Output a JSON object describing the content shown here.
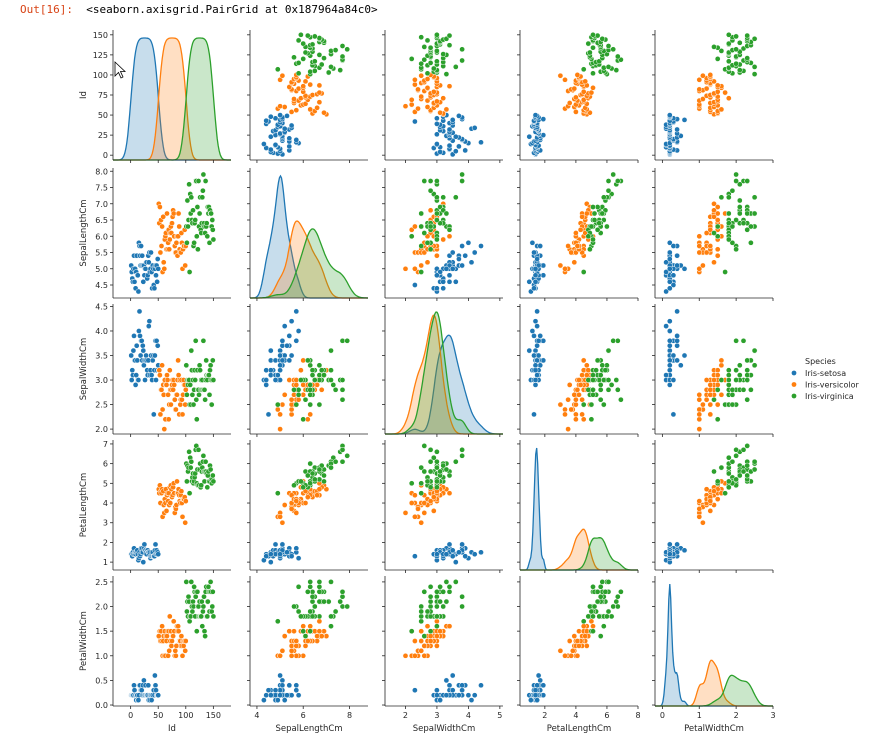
{
  "output": {
    "prompt": "Out[16]:",
    "text": "<seaborn.axisgrid.PairGrid at 0x187964a84c0>"
  },
  "chart_data": {
    "type": "scatter",
    "title": "",
    "variables": [
      "Id",
      "SepalLengthCm",
      "SepalWidthCm",
      "PetalLengthCm",
      "PetalWidthCm"
    ],
    "diagonal": "kde",
    "hue": "Species",
    "legend": {
      "title": "Species",
      "placement": "right",
      "entries": [
        {
          "name": "Iris-setosa",
          "color": "#1f77b4"
        },
        {
          "name": "Iris-versicolor",
          "color": "#ff7f0e"
        },
        {
          "name": "Iris-virginica",
          "color": "#2ca02c"
        }
      ]
    },
    "axes": {
      "Id": {
        "range": [
          -32,
          182
        ],
        "ticks": [
          0,
          50,
          100,
          150
        ],
        "yticks": [
          0,
          25,
          50,
          75,
          100,
          125,
          150
        ]
      },
      "SepalLengthCm": {
        "range": [
          3.7,
          8.8
        ],
        "ticks": [
          4,
          6,
          8
        ],
        "yticks": [
          4.5,
          5.0,
          5.5,
          6.0,
          6.5,
          7.0,
          7.5,
          8.0
        ],
        "yrange": [
          4.1,
          8.1
        ]
      },
      "SepalWidthCm": {
        "range": [
          1.35,
          5.1
        ],
        "ticks": [
          2,
          3,
          4,
          5
        ],
        "yticks": [
          2.0,
          2.5,
          3.0,
          3.5,
          4.0,
          4.5
        ],
        "yrange": [
          1.9,
          4.55
        ]
      },
      "PetalLengthCm": {
        "range": [
          0.4,
          8.0
        ],
        "ticks": [
          2,
          4,
          6,
          8
        ],
        "yticks": [
          1,
          2,
          3,
          4,
          5,
          6,
          7
        ],
        "yrange": [
          0.6,
          7.2
        ]
      },
      "PetalWidthCm": {
        "range": [
          -0.2,
          3.0
        ],
        "ticks": [
          0,
          1,
          2,
          3
        ],
        "yticks": [
          0.0,
          0.5,
          1.0,
          1.5,
          2.0,
          2.5
        ],
        "yrange": [
          -0.02,
          2.62
        ]
      }
    },
    "series": [
      {
        "name": "Iris-setosa",
        "SepalLengthCm": [
          5.1,
          4.9,
          4.7,
          4.6,
          5.0,
          5.4,
          4.6,
          5.0,
          4.4,
          4.9,
          5.4,
          4.8,
          4.8,
          4.3,
          5.8,
          5.7,
          5.4,
          5.1,
          5.7,
          5.1,
          5.4,
          5.1,
          4.6,
          5.1,
          4.8,
          5.0,
          5.0,
          5.2,
          5.2,
          4.7,
          4.8,
          5.4,
          5.2,
          5.5,
          4.9,
          5.0,
          5.5,
          4.9,
          4.4,
          5.1,
          5.0,
          4.5,
          4.4,
          5.0,
          5.1,
          4.8,
          5.1,
          4.6,
          5.3,
          5.0
        ],
        "SepalWidthCm": [
          3.5,
          3.0,
          3.2,
          3.1,
          3.6,
          3.9,
          3.4,
          3.4,
          2.9,
          3.1,
          3.7,
          3.4,
          3.0,
          3.0,
          4.0,
          4.4,
          3.9,
          3.5,
          3.8,
          3.8,
          3.4,
          3.7,
          3.6,
          3.3,
          3.4,
          3.0,
          3.4,
          3.5,
          3.4,
          3.2,
          3.1,
          3.4,
          4.1,
          4.2,
          3.1,
          3.2,
          3.5,
          3.1,
          3.0,
          3.4,
          3.5,
          2.3,
          3.2,
          3.5,
          3.8,
          3.0,
          3.8,
          3.2,
          3.7,
          3.3
        ],
        "PetalLengthCm": [
          1.4,
          1.4,
          1.3,
          1.5,
          1.4,
          1.7,
          1.4,
          1.5,
          1.4,
          1.5,
          1.5,
          1.6,
          1.4,
          1.1,
          1.2,
          1.5,
          1.3,
          1.4,
          1.7,
          1.5,
          1.7,
          1.5,
          1.0,
          1.7,
          1.9,
          1.6,
          1.6,
          1.5,
          1.4,
          1.6,
          1.6,
          1.5,
          1.5,
          1.4,
          1.5,
          1.2,
          1.3,
          1.5,
          1.3,
          1.5,
          1.3,
          1.3,
          1.3,
          1.6,
          1.9,
          1.4,
          1.6,
          1.4,
          1.5,
          1.4
        ],
        "PetalWidthCm": [
          0.2,
          0.2,
          0.2,
          0.2,
          0.2,
          0.4,
          0.3,
          0.2,
          0.2,
          0.1,
          0.2,
          0.2,
          0.1,
          0.1,
          0.2,
          0.4,
          0.4,
          0.3,
          0.3,
          0.3,
          0.2,
          0.4,
          0.2,
          0.5,
          0.2,
          0.2,
          0.4,
          0.2,
          0.2,
          0.2,
          0.2,
          0.4,
          0.1,
          0.2,
          0.1,
          0.2,
          0.2,
          0.1,
          0.2,
          0.2,
          0.3,
          0.3,
          0.2,
          0.6,
          0.4,
          0.3,
          0.2,
          0.2,
          0.2,
          0.2
        ]
      },
      {
        "name": "Iris-versicolor",
        "SepalLengthCm": [
          7.0,
          6.4,
          6.9,
          5.5,
          6.5,
          5.7,
          6.3,
          4.9,
          6.6,
          5.2,
          5.0,
          5.9,
          6.0,
          6.1,
          5.6,
          6.7,
          5.6,
          5.8,
          6.2,
          5.6,
          5.9,
          6.1,
          6.3,
          6.1,
          6.4,
          6.6,
          6.8,
          6.7,
          6.0,
          5.7,
          5.5,
          5.5,
          5.8,
          6.0,
          5.4,
          6.0,
          6.7,
          6.3,
          5.6,
          5.5,
          5.5,
          6.1,
          5.8,
          5.0,
          5.6,
          5.7,
          5.7,
          6.2,
          5.1,
          5.7
        ],
        "SepalWidthCm": [
          3.2,
          3.2,
          3.1,
          2.3,
          2.8,
          2.8,
          3.3,
          2.4,
          2.9,
          2.7,
          2.0,
          3.0,
          2.2,
          2.9,
          2.9,
          3.1,
          3.0,
          2.7,
          2.2,
          2.5,
          3.2,
          2.8,
          2.5,
          2.8,
          2.9,
          3.0,
          2.8,
          3.0,
          2.9,
          2.6,
          2.4,
          2.4,
          2.7,
          2.7,
          3.0,
          3.4,
          3.1,
          2.3,
          3.0,
          2.5,
          2.6,
          3.0,
          2.6,
          2.3,
          2.7,
          3.0,
          2.9,
          2.9,
          2.5,
          2.8
        ],
        "PetalLengthCm": [
          4.7,
          4.5,
          4.9,
          4.0,
          4.6,
          4.5,
          4.7,
          3.3,
          4.6,
          3.9,
          3.5,
          4.2,
          4.0,
          4.7,
          3.6,
          4.4,
          4.5,
          4.1,
          4.5,
          3.9,
          4.8,
          4.0,
          4.9,
          4.7,
          4.3,
          4.4,
          4.8,
          5.0,
          4.5,
          3.5,
          3.8,
          3.7,
          3.9,
          5.1,
          4.5,
          4.5,
          4.7,
          4.4,
          4.1,
          4.0,
          4.4,
          4.6,
          4.0,
          3.3,
          4.2,
          4.2,
          4.2,
          4.3,
          3.0,
          4.1
        ],
        "PetalWidthCm": [
          1.4,
          1.5,
          1.5,
          1.3,
          1.5,
          1.3,
          1.6,
          1.0,
          1.3,
          1.4,
          1.0,
          1.5,
          1.0,
          1.4,
          1.3,
          1.4,
          1.5,
          1.0,
          1.5,
          1.1,
          1.8,
          1.3,
          1.5,
          1.2,
          1.3,
          1.4,
          1.4,
          1.7,
          1.5,
          1.0,
          1.1,
          1.0,
          1.2,
          1.6,
          1.5,
          1.6,
          1.5,
          1.3,
          1.3,
          1.3,
          1.2,
          1.4,
          1.2,
          1.0,
          1.3,
          1.2,
          1.3,
          1.3,
          1.1,
          1.3
        ]
      },
      {
        "name": "Iris-virginica",
        "SepalLengthCm": [
          6.3,
          5.8,
          7.1,
          6.3,
          6.5,
          7.6,
          4.9,
          7.3,
          6.7,
          7.2,
          6.5,
          6.4,
          6.8,
          5.7,
          5.8,
          6.4,
          6.5,
          7.7,
          7.7,
          6.0,
          6.9,
          5.6,
          7.7,
          6.3,
          6.7,
          7.2,
          6.2,
          6.1,
          6.4,
          7.2,
          7.4,
          7.9,
          6.4,
          6.3,
          6.1,
          7.7,
          6.3,
          6.4,
          6.0,
          6.9,
          6.7,
          6.9,
          5.8,
          6.8,
          6.7,
          6.7,
          6.3,
          6.5,
          6.2,
          5.9
        ],
        "SepalWidthCm": [
          3.3,
          2.7,
          3.0,
          2.9,
          3.0,
          3.0,
          2.5,
          2.9,
          2.5,
          3.6,
          3.2,
          2.7,
          3.0,
          2.5,
          2.8,
          3.2,
          3.0,
          3.8,
          2.6,
          2.2,
          3.2,
          2.8,
          2.8,
          2.7,
          3.3,
          3.2,
          2.8,
          3.0,
          2.8,
          3.0,
          2.8,
          3.8,
          2.8,
          2.8,
          2.6,
          3.0,
          3.4,
          3.1,
          3.0,
          3.1,
          3.1,
          3.1,
          2.7,
          3.2,
          3.3,
          3.0,
          2.5,
          3.0,
          3.4,
          3.0
        ],
        "PetalLengthCm": [
          6.0,
          5.1,
          5.9,
          5.6,
          5.8,
          6.6,
          4.5,
          6.3,
          5.8,
          6.1,
          5.1,
          5.3,
          5.5,
          5.0,
          5.1,
          5.3,
          5.5,
          6.7,
          6.9,
          5.0,
          5.7,
          4.9,
          6.7,
          4.9,
          5.7,
          6.0,
          4.8,
          4.9,
          5.6,
          5.8,
          6.1,
          6.4,
          5.6,
          5.1,
          5.6,
          6.1,
          5.6,
          5.5,
          4.8,
          5.4,
          5.6,
          5.1,
          5.1,
          5.9,
          5.7,
          5.2,
          5.0,
          5.2,
          5.4,
          5.1
        ],
        "PetalWidthCm": [
          2.5,
          1.9,
          2.1,
          1.8,
          2.2,
          2.1,
          1.7,
          1.8,
          1.8,
          2.5,
          2.0,
          1.9,
          2.1,
          2.0,
          2.4,
          2.3,
          1.8,
          2.2,
          2.3,
          1.5,
          2.3,
          2.0,
          2.0,
          1.8,
          2.1,
          1.8,
          1.8,
          1.8,
          2.1,
          1.6,
          1.9,
          2.0,
          2.2,
          1.5,
          1.4,
          2.3,
          2.4,
          1.8,
          1.8,
          2.1,
          2.4,
          2.3,
          1.9,
          2.3,
          2.5,
          2.3,
          1.9,
          2.0,
          2.3,
          1.8
        ]
      }
    ]
  }
}
